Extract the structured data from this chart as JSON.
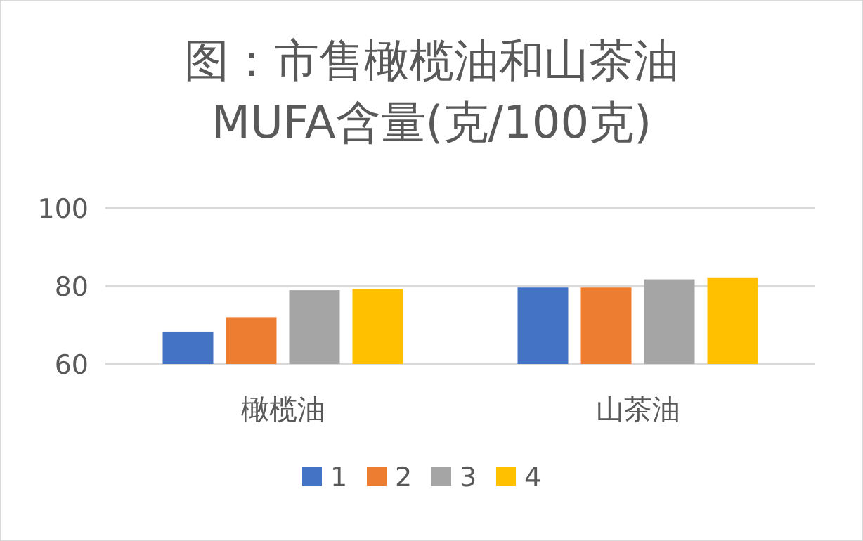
{
  "chart_data": {
    "type": "bar",
    "title": "图：市售橄榄油和山茶油\nMUFA含量(克/100克)",
    "categories": [
      "橄榄油",
      "山茶油"
    ],
    "series": [
      {
        "name": "1",
        "color": "#4472c4",
        "values": [
          68.3,
          79.6
        ]
      },
      {
        "name": "2",
        "color": "#ed7d31",
        "values": [
          72.0,
          79.6
        ]
      },
      {
        "name": "3",
        "color": "#a5a5a5",
        "values": [
          78.9,
          81.7
        ]
      },
      {
        "name": "4",
        "color": "#ffc000",
        "values": [
          79.2,
          82.2
        ]
      }
    ],
    "ylim": [
      60,
      100
    ],
    "yticks": [
      60,
      80,
      100
    ],
    "grid": "y",
    "legend": "bottom"
  }
}
